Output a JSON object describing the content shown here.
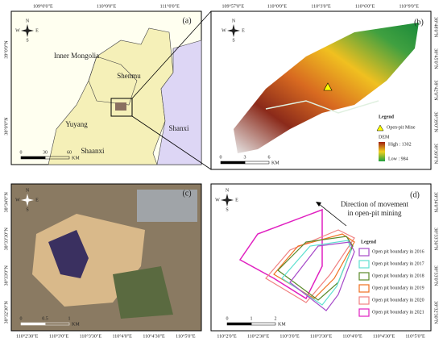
{
  "panels": [
    {
      "label": "(a)",
      "top_ticks": [
        "109°0'0\"E",
        "110°0'0\"E",
        "111°0'0\"E"
      ],
      "left_ticks": [
        "39°0'0\"N",
        "38°0'0\"N"
      ],
      "places": [
        "Inner Mongolia",
        "Shenmu",
        "Yuyang",
        "Shanxi",
        "Shaanxi"
      ],
      "scale": [
        "0",
        "30",
        "60",
        "KM"
      ]
    },
    {
      "label": "(b)",
      "top_ticks": [
        "109°57'0\"E",
        "110°0'0\"E",
        "110°3'0\"E",
        "110°6'0\"E",
        "110°9'0\"E"
      ],
      "right_ticks": [
        "38°48'0\"N",
        "38°45'0\"N",
        "38°42'0\"N",
        "38°39'0\"N",
        "38°36'0\"N"
      ],
      "legend": {
        "title": "Legend",
        "mine": "Open-pit Mine",
        "dem": "DEM",
        "high": "High : 1302",
        "low": "Low : 984"
      },
      "scale": [
        "0",
        "3",
        "6",
        "KM"
      ]
    },
    {
      "label": "(c)",
      "left_ticks": [
        "38°34'0\"N",
        "38°33'30\"N",
        "38°33'0\"N",
        "38°32'30\"N"
      ],
      "bottom_ticks": [
        "110°2'30\"E",
        "110°3'0\"E",
        "110°3'30\"E",
        "110°4'0\"E",
        "110°4'30\"E",
        "110°5'0\"E"
      ],
      "scale": [
        "0",
        "0.5",
        "1",
        "KM"
      ]
    },
    {
      "label": "(d)",
      "annotation": [
        "Direction of movement",
        "in open-pit mining"
      ],
      "legend_title": "Legend",
      "legend": [
        "Open pit boundary in 2016",
        "Open pit boundary in 2017",
        "Open pit boundary in 2018",
        "Open pit boundary in 2019",
        "Open pit boundary in 2020",
        "Open pit boundary in 2021"
      ],
      "legend_colors": [
        "#a64ac9",
        "#5fe0d0",
        "#5a8a2a",
        "#f07020",
        "#f08080",
        "#e020c0"
      ],
      "bottom_ticks": [
        "110°2'0\"E",
        "110°2'30\"E",
        "110°3'0\"E",
        "110°3'30\"E",
        "110°4'0\"E",
        "110°4'30\"E",
        "110°5'0\"E"
      ],
      "right_ticks": [
        "38°34'0\"N",
        "38°33'30\"N",
        "38°33'0\"N",
        "38°32'30\"N"
      ],
      "scale": [
        "0",
        "1",
        "2",
        "KM"
      ]
    }
  ],
  "compass": [
    "N",
    "W",
    "E",
    "S"
  ]
}
